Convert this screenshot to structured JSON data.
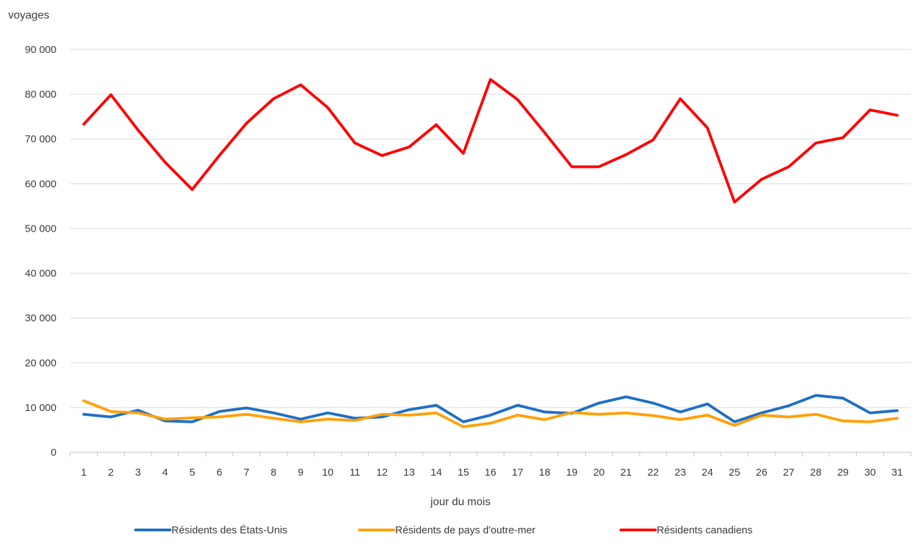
{
  "chart_data": {
    "type": "line",
    "title": "",
    "xlabel": "jour du mois",
    "ylabel": "voyages",
    "ylim": [
      0,
      90000
    ],
    "y_ticks": [
      0,
      10000,
      20000,
      30000,
      40000,
      50000,
      60000,
      70000,
      80000,
      90000
    ],
    "y_tick_labels": [
      "0",
      "10 000",
      "20 000",
      "30 000",
      "40 000",
      "50 000",
      "60 000",
      "70 000",
      "80 000",
      "90 000"
    ],
    "grid": true,
    "legend_position": "bottom",
    "categories": [
      "1",
      "2",
      "3",
      "4",
      "5",
      "6",
      "7",
      "8",
      "9",
      "10",
      "11",
      "12",
      "13",
      "14",
      "15",
      "16",
      "17",
      "18",
      "19",
      "20",
      "21",
      "22",
      "23",
      "24",
      "25",
      "26",
      "27",
      "28",
      "29",
      "30",
      "31"
    ],
    "series": [
      {
        "name": "Résidents des États-Unis",
        "color": "#1f6fc6",
        "values": [
          8500,
          7900,
          9400,
          7000,
          6800,
          9100,
          9900,
          8800,
          7400,
          8800,
          7600,
          7900,
          9500,
          10500,
          6800,
          8300,
          10500,
          9000,
          8700,
          11000,
          12400,
          11000,
          9000,
          10800,
          6800,
          8800,
          10400,
          12700,
          12100,
          8800,
          9300
        ]
      },
      {
        "name": "Résidents de pays d'outre-mer",
        "color": "#ffa00a",
        "values": [
          11500,
          9100,
          8800,
          7400,
          7700,
          7900,
          8500,
          7600,
          6800,
          7400,
          7100,
          8500,
          8300,
          8800,
          5700,
          6500,
          8300,
          7300,
          8900,
          8500,
          8800,
          8200,
          7300,
          8300,
          6000,
          8300,
          7900,
          8500,
          7000,
          6800,
          7600
        ]
      },
      {
        "name": "Résidents canadiens",
        "color": "#ff0000",
        "values": [
          73300,
          79900,
          72000,
          64800,
          58700,
          66300,
          73500,
          79000,
          82100,
          77000,
          69100,
          66300,
          68200,
          73200,
          66800,
          83300,
          78800,
          71400,
          63800,
          63800,
          66500,
          69800,
          79000,
          72500,
          55900,
          61000,
          63800,
          69100,
          70300,
          76500,
          75300
        ]
      }
    ]
  }
}
